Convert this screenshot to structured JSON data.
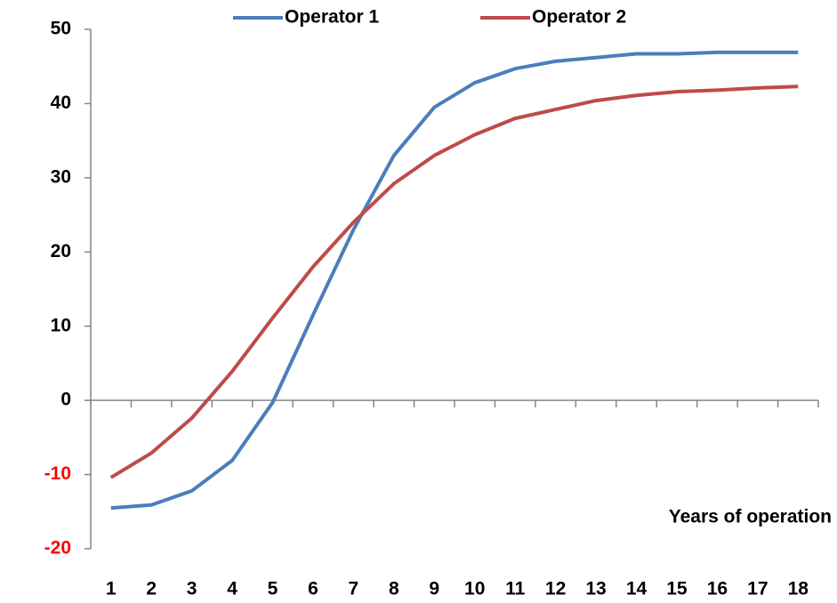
{
  "chart_data": {
    "type": "line",
    "x_label": "Years of operation",
    "categories": [
      1,
      2,
      3,
      4,
      5,
      6,
      7,
      8,
      9,
      10,
      11,
      12,
      13,
      14,
      15,
      16,
      17,
      18
    ],
    "series": [
      {
        "name": "Operator 1",
        "color": "#4a7ebb",
        "values": [
          -14.5,
          -14.1,
          -12.2,
          -8.1,
          -0.3,
          11.5,
          23,
          33,
          39.5,
          42.8,
          44.7,
          45.7,
          46.2,
          46.7,
          46.7,
          46.9,
          46.9,
          46.9
        ]
      },
      {
        "name": "Operator 2",
        "color": "#be4b48",
        "values": [
          -10.4,
          -7.1,
          -2.4,
          3.9,
          11.1,
          18,
          24,
          29.2,
          33,
          35.8,
          38,
          39.2,
          40.4,
          41.1,
          41.6,
          41.8,
          42.1,
          42.3
        ]
      }
    ],
    "ylim": [
      -20,
      50
    ],
    "yticks": [
      -20,
      -10,
      0,
      10,
      20,
      30,
      40,
      50
    ],
    "negative_tick_color": "#ff0000",
    "legend": "top",
    "grid": false
  }
}
